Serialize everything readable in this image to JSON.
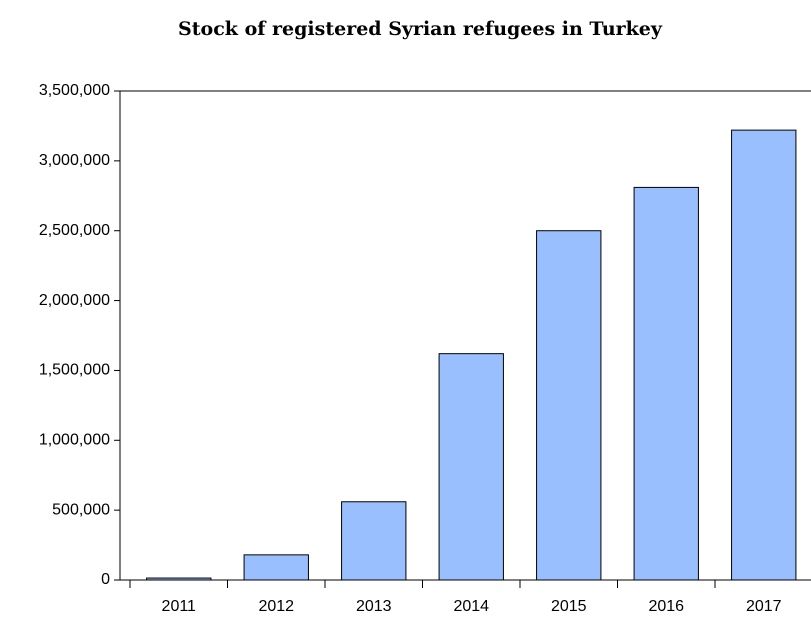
{
  "chart_data": {
    "type": "bar",
    "title": "Stock of registered Syrian refugees in Turkey",
    "categories": [
      "2011",
      "2012",
      "2013",
      "2014",
      "2015",
      "2016",
      "2017"
    ],
    "values": [
      14000,
      180000,
      560000,
      1620000,
      2500000,
      2810000,
      3220000
    ],
    "color": "#9abfff",
    "ylim": [
      0,
      3500000
    ],
    "yticks": [
      0,
      {
        "value": 500000,
        "label": "500,000"
      },
      {
        "value": 1000000,
        "label": "1,000,000"
      },
      {
        "value": 1500000,
        "label": "1,500,000"
      },
      {
        "value": 2000000,
        "label": "2,000,000"
      },
      {
        "value": 2500000,
        "label": "2,500,000"
      },
      {
        "value": 3000000,
        "label": "3,000,000"
      },
      {
        "value": 3500000,
        "label": "3,500,000"
      }
    ],
    "grid": false
  }
}
